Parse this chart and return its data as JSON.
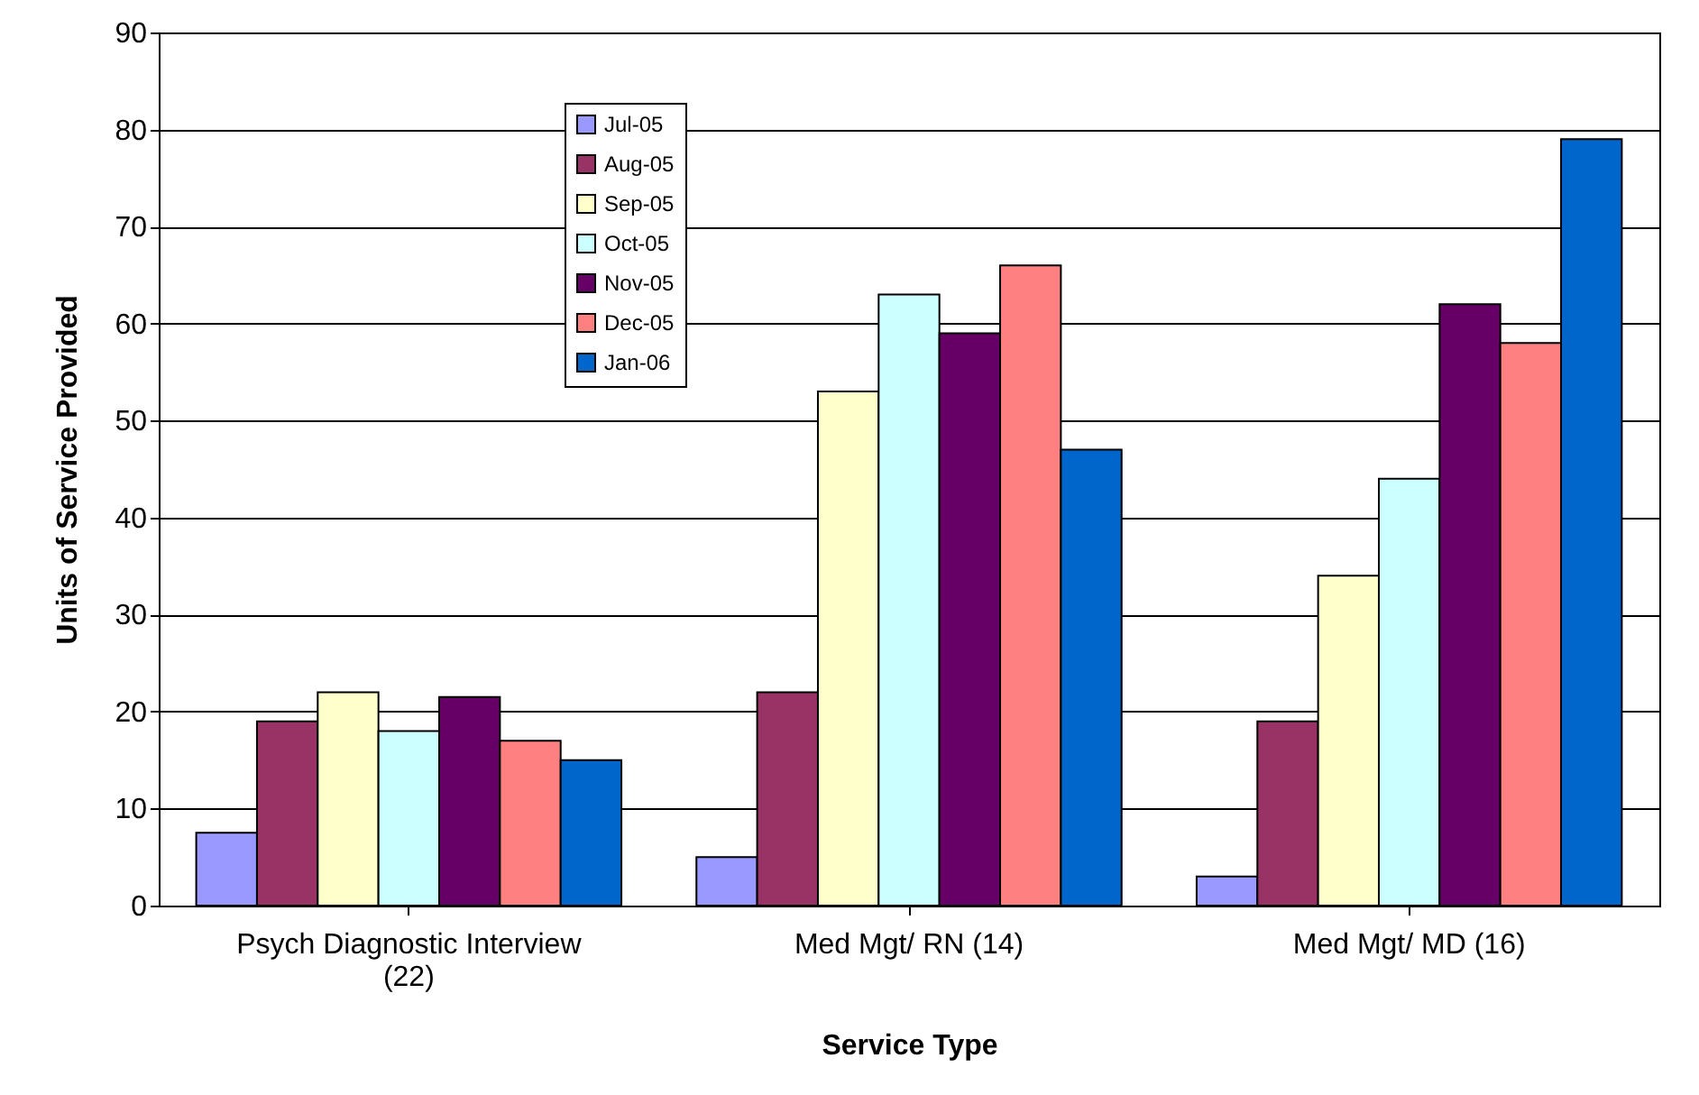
{
  "chart_data": {
    "type": "bar",
    "xlabel": "Service Type",
    "ylabel": "Units of Service Provided",
    "categories": [
      "Psych Diagnostic Interview (22)",
      "Med Mgt/ RN (14)",
      "Med Mgt/ MD (16)"
    ],
    "series": [
      {
        "name": "Jul-05",
        "color": "#9999ff",
        "values": [
          7.5,
          5,
          3
        ]
      },
      {
        "name": "Aug-05",
        "color": "#993366",
        "values": [
          19,
          22,
          19
        ]
      },
      {
        "name": "Sep-05",
        "color": "#ffffcc",
        "values": [
          22,
          53,
          34
        ]
      },
      {
        "name": "Oct-05",
        "color": "#ccffff",
        "values": [
          18,
          63,
          44
        ]
      },
      {
        "name": "Nov-05",
        "color": "#660066",
        "values": [
          21.5,
          59,
          62
        ]
      },
      {
        "name": "Dec-05",
        "color": "#ff8080",
        "values": [
          17,
          66,
          58
        ]
      },
      {
        "name": "Jan-06",
        "color": "#0066cc",
        "values": [
          15,
          47,
          79
        ]
      }
    ],
    "ylim": [
      0,
      90
    ],
    "yticks": [
      0,
      10,
      20,
      30,
      40,
      50,
      60,
      70,
      80,
      90
    ],
    "grid": "y",
    "legend": "top left"
  }
}
